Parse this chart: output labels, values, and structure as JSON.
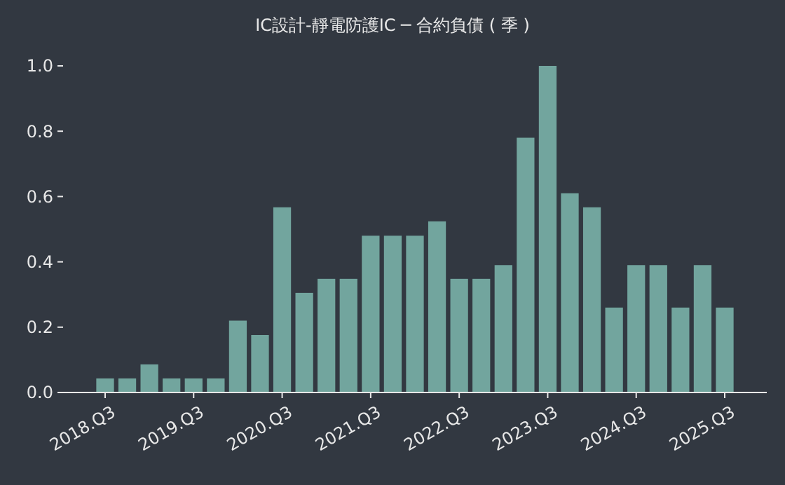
{
  "chart_data": {
    "type": "bar",
    "title": "IC設計-靜電防護IC ─ 合約負債 ( 季 )",
    "categories": [
      "2018.Q3",
      null,
      null,
      null,
      "2019.Q3",
      null,
      null,
      null,
      "2020.Q3",
      null,
      null,
      null,
      "2021.Q3",
      null,
      null,
      null,
      "2022.Q3",
      null,
      null,
      null,
      "2023.Q3",
      null,
      null,
      null,
      "2024.Q3",
      null,
      null,
      null,
      "2025.Q3"
    ],
    "values": [
      0.043,
      0.043,
      0.086,
      0.043,
      0.043,
      0.043,
      0.22,
      0.176,
      0.567,
      0.305,
      0.348,
      0.348,
      0.48,
      0.48,
      0.48,
      0.524,
      0.348,
      0.348,
      0.39,
      0.78,
      1.0,
      0.61,
      0.567,
      0.26,
      0.39,
      0.39,
      0.26,
      0.39,
      0.26
    ],
    "color": "#72a59e",
    "ylim": [
      0,
      1.0
    ],
    "yticks": [
      {
        "value": 0,
        "label": "0.0"
      },
      {
        "value": 0.2,
        "label": "0.2"
      },
      {
        "value": 0.4,
        "label": "0.4"
      },
      {
        "value": 0.6,
        "label": "0.6"
      },
      {
        "value": 0.8,
        "label": "0.8"
      },
      {
        "value": 1,
        "label": "1.0"
      }
    ],
    "grid": false
  }
}
